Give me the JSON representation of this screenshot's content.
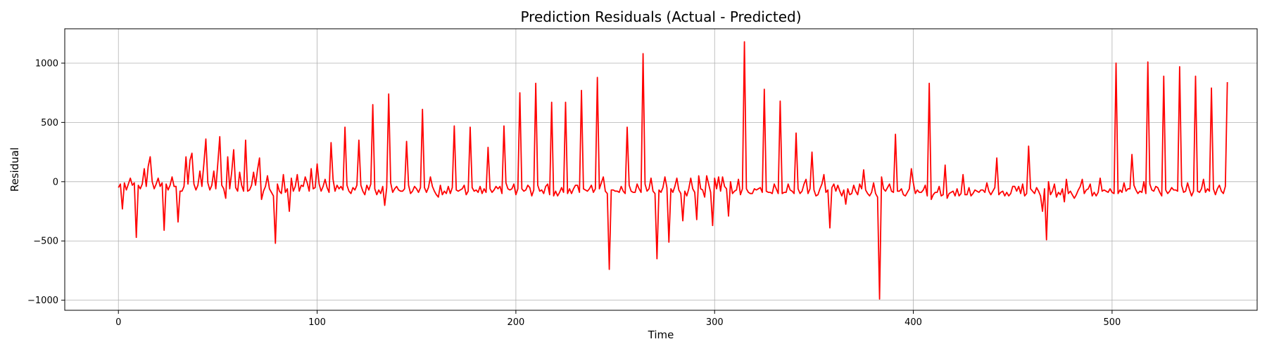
{
  "chart_data": {
    "type": "line",
    "title": "Prediction Residuals (Actual - Predicted)",
    "xlabel": "Time",
    "ylabel": "Residual",
    "xlim": [
      -27,
      573
    ],
    "ylim": [
      -1085,
      1290
    ],
    "x_ticks": [
      0,
      100,
      200,
      300,
      400,
      500
    ],
    "y_ticks": [
      -1000,
      -500,
      0,
      500,
      1000
    ],
    "x_tick_labels": [
      "0",
      "100",
      "200",
      "300",
      "400",
      "500"
    ],
    "y_tick_labels": [
      "−1000",
      "−500",
      "0",
      "500",
      "1000"
    ],
    "grid": true,
    "legend": "none",
    "series": [
      {
        "color": "#ff0000",
        "x_start": 0,
        "x_step": 1,
        "values": [
          -50,
          -20,
          -230,
          -10,
          -70,
          -20,
          30,
          -30,
          -10,
          -470,
          -30,
          -60,
          -20,
          110,
          -40,
          130,
          210,
          0,
          -60,
          -20,
          30,
          -40,
          -10,
          -410,
          -20,
          -70,
          -30,
          40,
          -40,
          -40,
          -340,
          -80,
          -80,
          -40,
          210,
          -20,
          180,
          240,
          -20,
          -70,
          -30,
          90,
          -40,
          150,
          360,
          -10,
          -70,
          -30,
          90,
          -60,
          150,
          380,
          -30,
          -60,
          -140,
          210,
          -60,
          80,
          270,
          -50,
          -80,
          80,
          -30,
          -80,
          350,
          -80,
          -70,
          -30,
          80,
          -30,
          100,
          200,
          -150,
          -80,
          -40,
          50,
          -60,
          -90,
          -120,
          -520,
          -20,
          -80,
          -100,
          60,
          -90,
          -60,
          -250,
          30,
          -80,
          -40,
          60,
          -80,
          -30,
          -40,
          40,
          -10,
          -80,
          110,
          -60,
          -50,
          150,
          -20,
          -80,
          -40,
          20,
          -50,
          -90,
          330,
          20,
          -80,
          -30,
          -60,
          -40,
          -70,
          460,
          -30,
          -80,
          -100,
          -50,
          -70,
          -30,
          350,
          -30,
          -80,
          -110,
          -30,
          -70,
          -20,
          650,
          -60,
          -110,
          -70,
          -100,
          -40,
          -200,
          -50,
          740,
          -10,
          -90,
          -60,
          -40,
          -70,
          -80,
          -80,
          -60,
          340,
          -30,
          -100,
          -80,
          -40,
          -60,
          -90,
          -50,
          610,
          -50,
          -90,
          -50,
          40,
          -40,
          -80,
          -110,
          -130,
          -30,
          -110,
          -80,
          -100,
          -40,
          -100,
          -50,
          470,
          -70,
          -80,
          -70,
          -60,
          -30,
          -110,
          -80,
          460,
          -50,
          -80,
          -70,
          -90,
          -40,
          -100,
          -60,
          -90,
          290,
          -60,
          -90,
          -70,
          -40,
          -60,
          -40,
          -100,
          470,
          -10,
          -60,
          -70,
          -60,
          -20,
          -110,
          -60,
          750,
          -60,
          -80,
          -70,
          -30,
          -50,
          -120,
          -70,
          830,
          -30,
          -80,
          -70,
          -100,
          -40,
          -20,
          -110,
          670,
          -120,
          -80,
          -120,
          -90,
          -50,
          -90,
          670,
          -100,
          -60,
          -100,
          -60,
          -30,
          -30,
          -90,
          770,
          -60,
          -70,
          -80,
          -60,
          -30,
          -90,
          -60,
          880,
          -60,
          -10,
          40,
          -80,
          -100,
          -740,
          -70,
          -70,
          -80,
          -80,
          -90,
          -40,
          -80,
          -100,
          460,
          -30,
          -80,
          -90,
          -90,
          -20,
          -60,
          -90,
          1080,
          -20,
          -80,
          -60,
          30,
          -80,
          -100,
          -650,
          -70,
          -90,
          -50,
          40,
          -50,
          -510,
          -60,
          -90,
          -40,
          30,
          -70,
          -100,
          -330,
          -80,
          -120,
          -60,
          30,
          -60,
          -90,
          -320,
          50,
          -60,
          -70,
          -130,
          50,
          -20,
          -90,
          -370,
          30,
          -60,
          40,
          -80,
          40,
          -40,
          -60,
          -290,
          0,
          -100,
          -80,
          -70,
          20,
          -110,
          -60,
          1180,
          -60,
          -90,
          -100,
          -100,
          -60,
          -70,
          -60,
          -50,
          -90,
          780,
          -80,
          -90,
          -90,
          -100,
          -20,
          -60,
          -100,
          680,
          -100,
          -90,
          -90,
          -20,
          -70,
          -80,
          -100,
          410,
          -60,
          -100,
          -80,
          -20,
          20,
          -100,
          -60,
          250,
          -70,
          -120,
          -110,
          -60,
          -20,
          60,
          -90,
          -70,
          -390,
          -50,
          -20,
          -80,
          -30,
          -80,
          -120,
          -70,
          -190,
          -60,
          -110,
          -100,
          -30,
          -80,
          -110,
          -20,
          -60,
          100,
          -70,
          -100,
          -120,
          -90,
          -10,
          -100,
          -130,
          -990,
          40,
          -60,
          -80,
          -50,
          -20,
          -80,
          -90,
          400,
          -80,
          -80,
          -60,
          -110,
          -120,
          -90,
          -60,
          110,
          -10,
          -100,
          -70,
          -90,
          -90,
          -70,
          -30,
          -120,
          830,
          -150,
          -110,
          -90,
          -90,
          -40,
          -120,
          -110,
          140,
          -140,
          -100,
          -90,
          -80,
          -120,
          -60,
          -120,
          -100,
          60,
          -110,
          -110,
          -50,
          -120,
          -100,
          -70,
          -80,
          -90,
          -70,
          -70,
          -90,
          -10,
          -80,
          -110,
          -80,
          -50,
          200,
          -110,
          -90,
          -80,
          -120,
          -90,
          -120,
          -100,
          -40,
          -40,
          -80,
          -40,
          -100,
          -20,
          -120,
          -100,
          300,
          -60,
          -80,
          -100,
          -50,
          -80,
          -120,
          -250,
          -60,
          -490,
          0,
          -110,
          -80,
          -20,
          -130,
          -90,
          -110,
          -60,
          -170,
          20,
          -100,
          -80,
          -110,
          -140,
          -110,
          -70,
          -40,
          20,
          -100,
          -70,
          -60,
          -20,
          -120,
          -90,
          -120,
          -90,
          30,
          -80,
          -70,
          -80,
          -90,
          -60,
          -90,
          -100,
          1000,
          -100,
          -70,
          -90,
          -10,
          -80,
          -60,
          -60,
          230,
          -30,
          -70,
          -100,
          -80,
          -90,
          0,
          -100,
          1010,
          -20,
          -70,
          -80,
          -40,
          -50,
          -90,
          -120,
          890,
          -70,
          -100,
          -80,
          -50,
          -70,
          -70,
          -80,
          970,
          -30,
          -90,
          -80,
          -10,
          -70,
          -120,
          -80,
          890,
          -80,
          -90,
          -60,
          20,
          -90,
          -60,
          -80,
          790,
          -60,
          -110,
          -60,
          -30,
          -80,
          -100,
          -40,
          840
        ]
      }
    ]
  }
}
